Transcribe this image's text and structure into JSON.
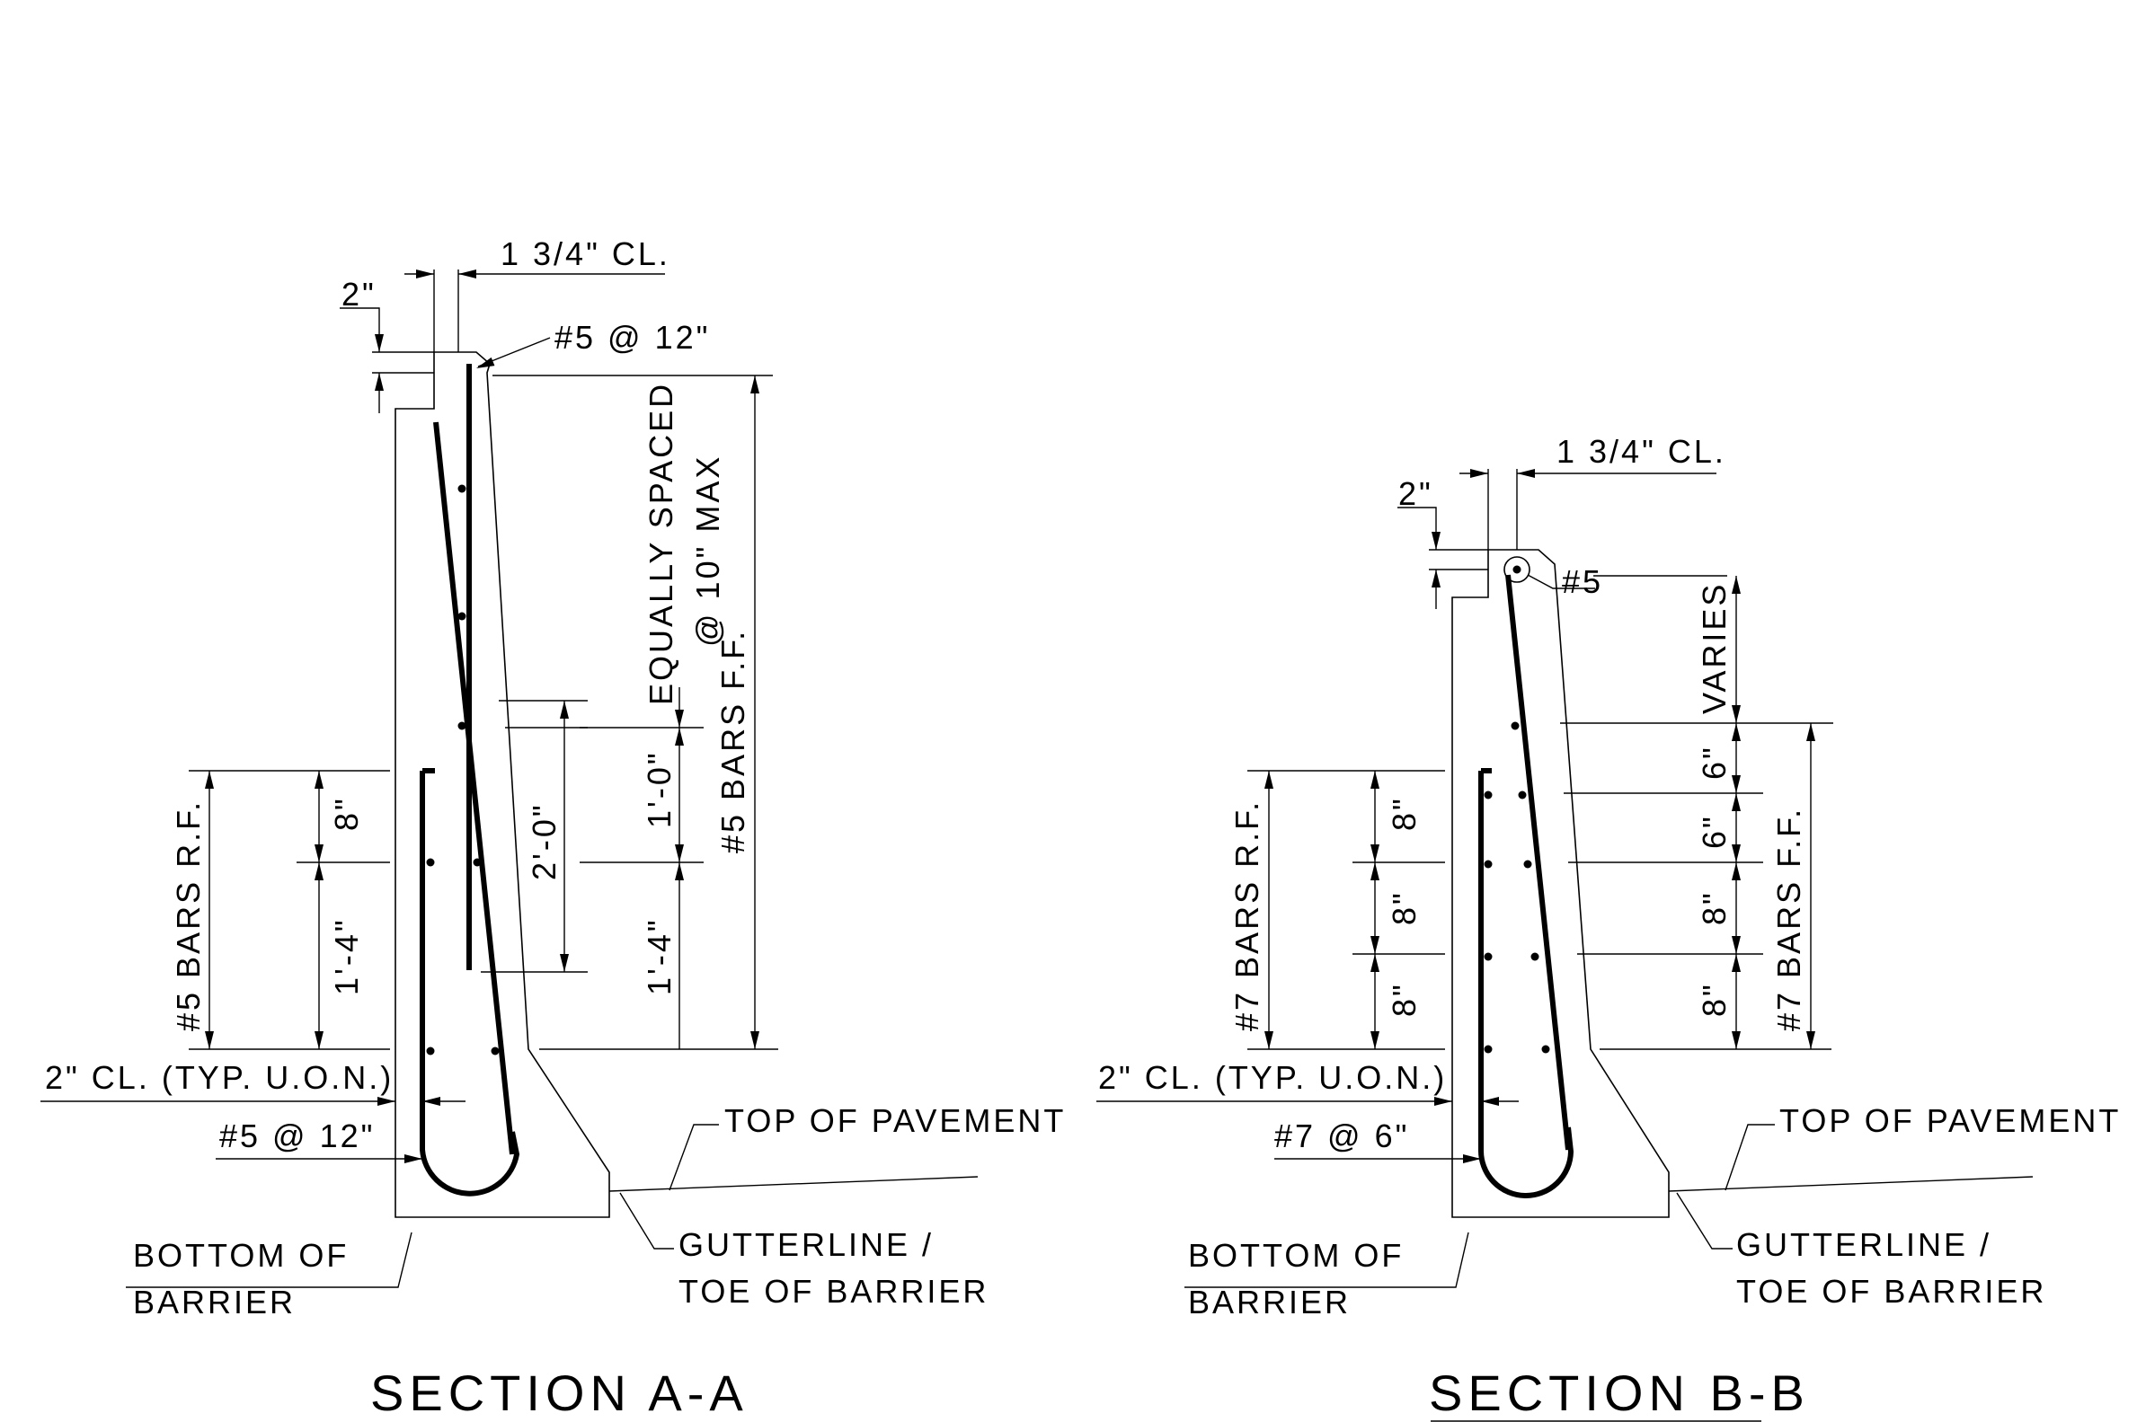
{
  "section_a": {
    "title": "SECTION A-A",
    "cover_top": "1 3/4\" CL.",
    "dim_2in": "2\"",
    "top_bar": "#5 @ 12\"",
    "equally_spaced_1": "EQUALLY SPACED",
    "equally_spaced_2": "@ 10\" MAX",
    "bars_ff": "#5 BARS F.F.",
    "bars_rf": "#5 BARS R.F.",
    "dim_8": "8\"",
    "dim_1_4_left": "1'-4\"",
    "dim_2_0": "2'-0\"",
    "dim_1_0": "1'-0\"",
    "dim_1_4_right": "1'-4\"",
    "clear_note": "2\" CL. (TYP. U.O.N.)",
    "stirrup": "#5 @ 12\"",
    "top_of_pavement": "TOP OF PAVEMENT",
    "bottom_1": "BOTTOM OF",
    "bottom_2": "BARRIER",
    "gutter_1": "GUTTERLINE /",
    "gutter_2": "TOE OF BARRIER"
  },
  "section_b": {
    "title": "SECTION B-B",
    "cover_top": "1 3/4\" CL.",
    "dim_2in": "2\"",
    "top_bar": "#5",
    "varies": "VARIES",
    "bars_ff": "#7 BARS F.F.",
    "bars_rf": "#7 BARS R.F.",
    "dim_8a": "8\"",
    "dim_8b": "8\"",
    "dim_8c": "8\"",
    "dim_6a": "6\"",
    "dim_6b": "6\"",
    "dim_8d": "8\"",
    "dim_8e": "8\"",
    "clear_note": "2\" CL. (TYP. U.O.N.)",
    "stirrup": "#7 @ 6\"",
    "top_of_pavement": "TOP OF PAVEMENT",
    "bottom_1": "BOTTOM OF",
    "bottom_2": "BARRIER",
    "gutter_1": "GUTTERLINE /",
    "gutter_2": "TOE OF BARRIER"
  }
}
